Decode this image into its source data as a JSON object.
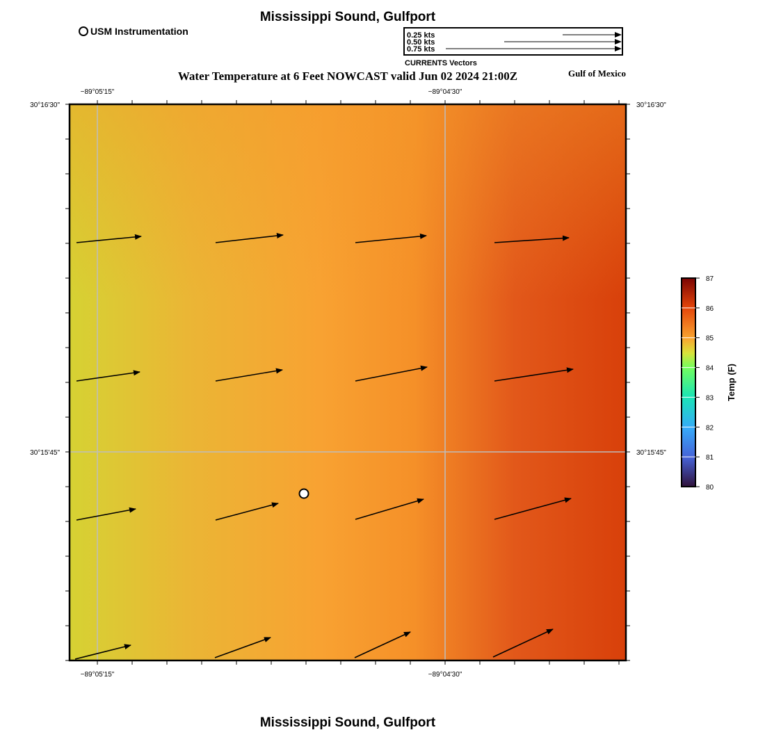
{
  "header": {
    "title_top": "Mississippi Sound, Gulfport",
    "title_bottom": "Mississippi Sound, Gulfport",
    "subtitle": "Water Temperature at 6 Feet NOWCAST valid Jun 02 2024 21:00Z",
    "region_label": "Gulf of Mexico"
  },
  "legend": {
    "instrument_label": "USM Instrumentation",
    "vectors_caption": "CURRENTS Vectors",
    "vector_scale": [
      {
        "label": "0.25 kts",
        "speed": 0.25
      },
      {
        "label": "0.50 kts",
        "speed": 0.5
      },
      {
        "label": "0.75 kts",
        "speed": 0.75
      }
    ]
  },
  "map": {
    "lon_labels": [
      "−89°05'15\"",
      "−89°04'30\""
    ],
    "lat_labels": [
      "30°16'30\"",
      "30°15'45\""
    ],
    "colors": {
      "frame": "#000000",
      "grid": "#bdbdbd",
      "vector": "#000000"
    },
    "station": {
      "name": "USM Instrumentation",
      "marker": "open-circle"
    }
  },
  "colorbar": {
    "label": "Temp (F)",
    "ticks": [
      "80",
      "81",
      "82",
      "83",
      "84",
      "85",
      "86",
      "87"
    ],
    "min": 80,
    "max": 87,
    "stops": [
      {
        "value": 80,
        "color": "#30123b"
      },
      {
        "value": 81,
        "color": "#4662d7"
      },
      {
        "value": 82,
        "color": "#36aaf9"
      },
      {
        "value": 83,
        "color": "#1ae4b6"
      },
      {
        "value": 84,
        "color": "#72fe5e"
      },
      {
        "value": 84.5,
        "color": "#d9e33a"
      },
      {
        "value": 85,
        "color": "#f9a530"
      },
      {
        "value": 86,
        "color": "#e3440a"
      },
      {
        "value": 87,
        "color": "#7a0403"
      }
    ]
  }
}
